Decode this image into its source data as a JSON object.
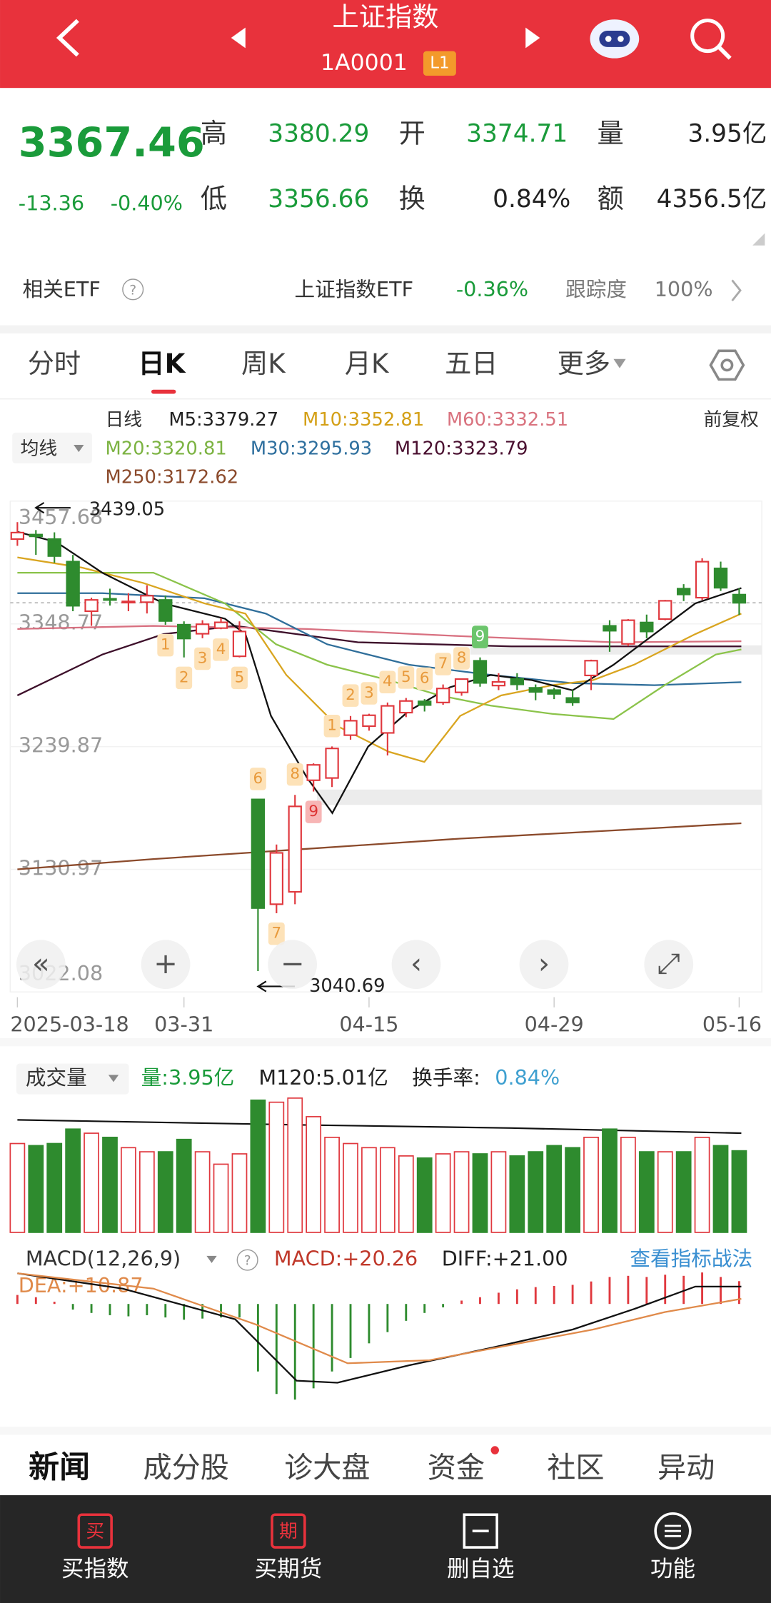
{
  "header": {
    "title": "上证指数",
    "code": "1A0001",
    "badge": "L1"
  },
  "quote": {
    "price": "3367.46",
    "change": "-13.36",
    "change_pct": "-0.40%",
    "high_label": "高",
    "high": "3380.29",
    "open_label": "开",
    "open": "3374.71",
    "volume_label": "量",
    "volume": "3.95亿",
    "low_label": "低",
    "low": "3356.66",
    "turnover_label": "换",
    "turnover": "0.84%",
    "amount_label": "额",
    "amount": "4356.5亿"
  },
  "etf": {
    "label": "相关ETF",
    "name": "上证指数ETF",
    "change": "-0.36%",
    "track_label": "跟踪度",
    "track": "100%"
  },
  "tabs": [
    "分时",
    "日K",
    "周K",
    "月K",
    "五日",
    "更多"
  ],
  "ma": {
    "selector": "均线",
    "period": "日线",
    "adjust": "前复权",
    "m5": "M5:3379.27",
    "m10": "M10:3352.81",
    "m60": "M60:3332.51",
    "m20": "M20:3320.81",
    "m30": "M30:3295.93",
    "m120": "M120:3323.79",
    "m250": "M250:3172.62"
  },
  "chart_data": {
    "type": "candlestick",
    "dates": [
      "2025-03-18",
      "2025-03-19",
      "2025-03-20",
      "2025-03-21",
      "2025-03-24",
      "2025-03-25",
      "2025-03-26",
      "2025-03-27",
      "2025-03-28",
      "2025-03-31",
      "2025-04-01",
      "2025-04-02",
      "2025-04-03",
      "2025-04-07",
      "2025-04-08",
      "2025-04-09",
      "2025-04-10",
      "2025-04-11",
      "2025-04-14",
      "2025-04-15",
      "2025-04-16",
      "2025-04-17",
      "2025-04-18",
      "2025-04-21",
      "2025-04-22",
      "2025-04-23",
      "2025-04-24",
      "2025-04-25",
      "2025-04-28",
      "2025-04-29",
      "2025-04-30",
      "2025-05-06",
      "2025-05-07",
      "2025-05-08",
      "2025-05-09",
      "2025-05-12",
      "2025-05-13",
      "2025-05-14",
      "2025-05-15",
      "2025-05-16"
    ],
    "open": [
      3424,
      3428,
      3424,
      3404,
      3360,
      3371,
      3368,
      3368,
      3370,
      3348,
      3340,
      3345,
      3320,
      3193,
      3100,
      3111,
      3210,
      3212,
      3250,
      3258,
      3252,
      3270,
      3280,
      3279,
      3288,
      3316,
      3294,
      3300,
      3292,
      3290,
      3283,
      3303,
      3347,
      3331,
      3350,
      3353,
      3380,
      3372,
      3398,
      3374.71
    ],
    "high": [
      3439.05,
      3432,
      3430,
      3410,
      3372,
      3380,
      3376,
      3383,
      3374,
      3351,
      3352,
      3354,
      3351,
      3193,
      3153,
      3197,
      3225,
      3240,
      3267,
      3269,
      3279,
      3283,
      3282,
      3295,
      3300,
      3319,
      3305,
      3305,
      3295,
      3292,
      3290,
      3317,
      3352,
      3353,
      3357,
      3370,
      3384,
      3407,
      3404,
      3380.29
    ],
    "low": [
      3418,
      3410,
      3403,
      3360,
      3347,
      3365,
      3360,
      3358,
      3348,
      3319,
      3336,
      3344,
      3319,
      3040.69,
      3092,
      3100,
      3200,
      3204,
      3246,
      3254,
      3232,
      3266,
      3271,
      3277,
      3285,
      3293,
      3290,
      3290,
      3281,
      3282,
      3276,
      3290,
      3324,
      3329,
      3336,
      3352,
      3369,
      3370,
      3378,
      3356.66
    ],
    "close": [
      3429.76,
      3426.43,
      3408.95,
      3364.83,
      3370.03,
      3369.98,
      3368.7,
      3373.75,
      3351.31,
      3335.75,
      3348.44,
      3350.13,
      3342.01,
      3096.58,
      3145.55,
      3186.81,
      3223.64,
      3238.23,
      3262.81,
      3267.66,
      3276,
      3280.34,
      3276.73,
      3291.43,
      3299.76,
      3296.36,
      3297.29,
      3295.06,
      3288.41,
      3286.65,
      3279.03,
      3316.11,
      3342.67,
      3352,
      3342,
      3369.24,
      3374.87,
      3403.95,
      3380.82,
      3367.46
    ],
    "up_color": "#e0383e",
    "down_color": "#2e8b2e",
    "ylim": [
      3022.08,
      3457.68
    ],
    "yticks": [
      3457.68,
      3348.77,
      3239.87,
      3130.97,
      3022.08
    ],
    "xticks": [
      {
        "value": "2025-03-18",
        "label": "2025-03-18"
      },
      {
        "value": "2025-03-31",
        "label": "03-31"
      },
      {
        "value": "2025-04-15",
        "label": "04-15"
      },
      {
        "value": "2025-04-29",
        "label": "04-29"
      },
      {
        "value": "2025-05-16",
        "label": "05-16"
      }
    ],
    "max_price": 3439.05,
    "min_price": 3040.69,
    "td_marks": [
      {
        "date": "2025-03-28",
        "label": 1,
        "side": "below"
      },
      {
        "date": "2025-03-31",
        "label": 2,
        "side": "below"
      },
      {
        "date": "2025-04-01",
        "label": 3,
        "side": "below"
      },
      {
        "date": "2025-04-02",
        "label": 4,
        "side": "below"
      },
      {
        "date": "2025-04-03",
        "label": 5,
        "side": "below"
      },
      {
        "date": "2025-04-07",
        "label": 6,
        "side": "above"
      },
      {
        "date": "2025-04-08",
        "label": 7,
        "side": "below"
      },
      {
        "date": "2025-04-09",
        "label": 8,
        "side": "above"
      },
      {
        "date": "2025-04-10",
        "label": 9,
        "side": "below",
        "highlight": true
      },
      {
        "date": "2025-04-11",
        "label": 1,
        "side": "above"
      },
      {
        "date": "2025-04-14",
        "label": 2,
        "side": "above"
      },
      {
        "date": "2025-04-15",
        "label": 3,
        "side": "above"
      },
      {
        "date": "2025-04-16",
        "label": 4,
        "side": "above"
      },
      {
        "date": "2025-04-17",
        "label": 5,
        "side": "above"
      },
      {
        "date": "2025-04-18",
        "label": 6,
        "side": "above"
      },
      {
        "date": "2025-04-21",
        "label": 7,
        "side": "above"
      },
      {
        "date": "2025-04-22",
        "label": 8,
        "side": "above"
      },
      {
        "date": "2025-04-23",
        "label": 9,
        "side": "above",
        "highlight": true
      }
    ],
    "volume_values": [
      4.3,
      4.2,
      4.3,
      5.0,
      4.8,
      4.6,
      4.1,
      3.9,
      3.9,
      4.5,
      3.9,
      3.3,
      3.8,
      6.4,
      6.3,
      6.5,
      5.6,
      4.6,
      4.3,
      4.1,
      4.1,
      3.7,
      3.6,
      3.8,
      3.9,
      3.8,
      3.9,
      3.7,
      3.9,
      4.2,
      4.1,
      4.6,
      5.0,
      4.6,
      3.9,
      3.9,
      3.9,
      4.6,
      4.2,
      3.95
    ],
    "macd_values": [
      8,
      6,
      2,
      -5,
      -8,
      -10,
      -11,
      -10,
      -12,
      -14,
      -13,
      -12,
      -12,
      -60,
      -80,
      -85,
      -75,
      -60,
      -48,
      -35,
      -25,
      -15,
      -8,
      -3,
      3,
      6,
      10,
      13,
      15,
      16,
      17,
      20,
      24,
      25,
      24,
      26,
      25,
      28,
      24,
      20.26
    ]
  },
  "volume_panel": {
    "selector": "成交量",
    "volume": "量:3.95亿",
    "m120": "M120:5.01亿",
    "turnover_label": "换手率:",
    "turnover": "0.84%"
  },
  "macd_panel": {
    "selector": "MACD(12,26,9)",
    "macd": "MACD:+20.26",
    "diff": "DIFF:+21.00",
    "dea": "DEA:+10.87",
    "link": "查看指标战法"
  },
  "bottom_tabs": [
    "新闻",
    "成分股",
    "诊大盘",
    "资金",
    "社区",
    "异动"
  ],
  "nav": [
    {
      "icon": "买",
      "label": "买指数"
    },
    {
      "icon": "期",
      "label": "买期货"
    },
    {
      "label": "删自选"
    },
    {
      "label": "功能"
    }
  ]
}
